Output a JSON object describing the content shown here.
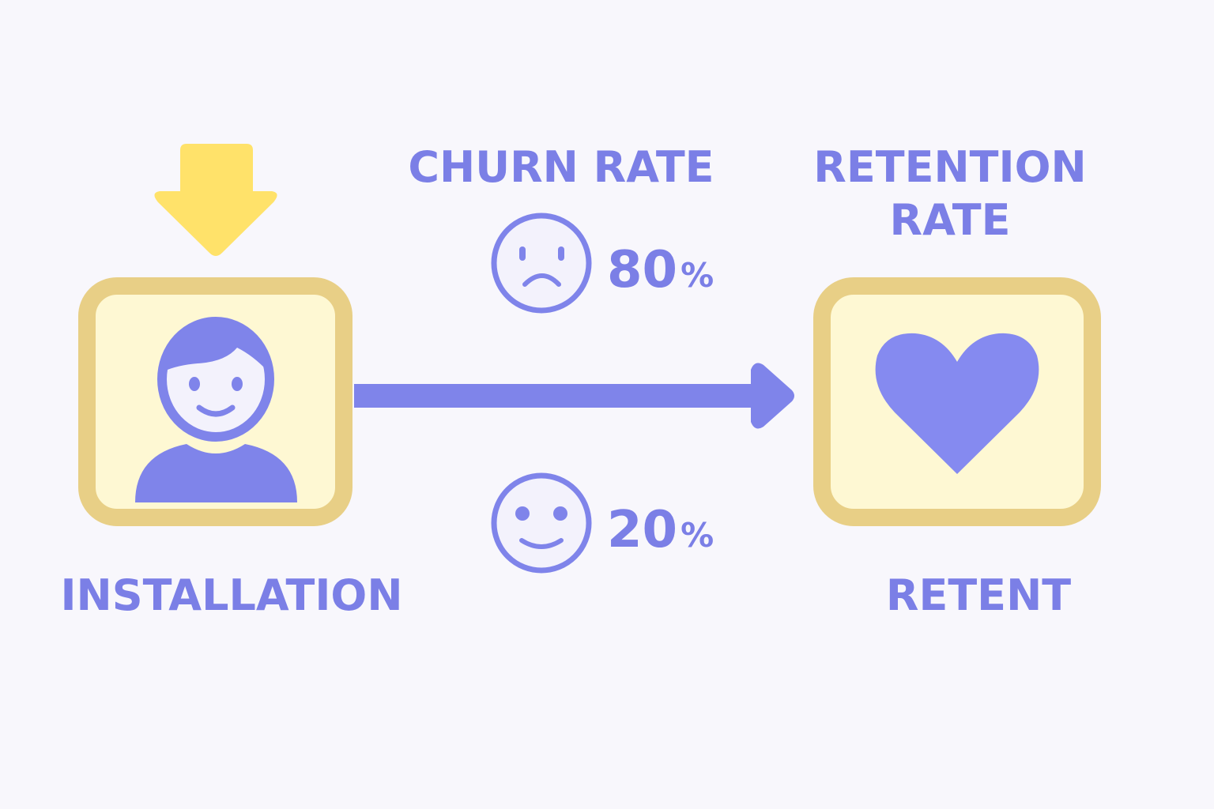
{
  "labels": {
    "churn": "CHURN RATE",
    "retention": [
      "RETENTION",
      "RATE"
    ],
    "installation": "INSTALLATION",
    "retent": "RETENT"
  },
  "stats": [
    {
      "number": "80",
      "unit": "%"
    },
    {
      "number": "20",
      "unit": "%"
    }
  ]
}
